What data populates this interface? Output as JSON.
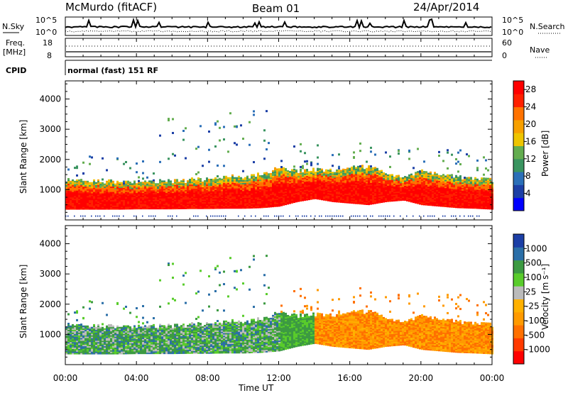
{
  "header": {
    "station": "McMurdo (fitACF)",
    "beam": "Beam 01",
    "date": "24/Apr/2014"
  },
  "noise_panel": {
    "left_label": "N.Sky",
    "right_label": "N.Search",
    "left_ticks": [
      "10^5",
      "10^0"
    ],
    "right_ticks": [
      "10^5",
      "10^0"
    ]
  },
  "freq_panel": {
    "left_label_1": "Freq.",
    "left_label_2": "[MHz]",
    "right_label": "Nave",
    "left_ticks": [
      "18",
      "8"
    ],
    "right_ticks": [
      "60",
      "0"
    ]
  },
  "cpid": {
    "label": "CPID",
    "mode": "normal (fast) 151 RF"
  },
  "colors": {
    "power_scale": [
      "#0000ff",
      "#1c3fa6",
      "#2b6fb8",
      "#3a9460",
      "#63ad4f",
      "#eec500",
      "#f7a000",
      "#ff7200",
      "#ff2000",
      "#ff0000"
    ],
    "velocity_scale": [
      "#ff0000",
      "#ff3a00",
      "#ff7000",
      "#ff9a00",
      "#ffb100",
      "#bbbbbb",
      "#59cc2b",
      "#3c9a42",
      "#2b6fa8",
      "#1c3fa6"
    ]
  },
  "chart_data": [
    {
      "type": "heatmap",
      "name": "power",
      "x_axis": {
        "ticks": [
          "00:00",
          "04:00",
          "08:00",
          "12:00",
          "16:00",
          "20:00",
          "00:00"
        ],
        "range_hours": [
          0,
          24
        ]
      },
      "ylabel": "Slant Range [km]",
      "y_ticks": [
        1000,
        2000,
        3000,
        4000
      ],
      "ylim": [
        0,
        4600
      ],
      "colorbar": {
        "label": "Power [dB]",
        "ticks": [
          4,
          8,
          12,
          16,
          20,
          24,
          28
        ],
        "range": [
          0,
          30
        ]
      },
      "dense_band": {
        "hours": [
          0,
          1,
          2,
          3,
          4,
          5,
          6,
          7,
          8,
          9,
          10,
          11,
          12,
          13,
          14,
          15,
          16,
          17,
          18,
          19,
          20,
          21,
          22,
          23,
          24
        ],
        "bottom_km": [
          350,
          350,
          350,
          350,
          360,
          360,
          360,
          370,
          370,
          380,
          380,
          400,
          450,
          600,
          700,
          600,
          550,
          500,
          600,
          650,
          500,
          450,
          400,
          380,
          350
        ],
        "top_km": [
          1300,
          1300,
          1250,
          1250,
          1250,
          1250,
          1250,
          1300,
          1350,
          1400,
          1400,
          1500,
          1700,
          1600,
          1650,
          1600,
          1700,
          1750,
          1500,
          1400,
          1600,
          1500,
          1400,
          1350,
          1300
        ]
      }
    },
    {
      "type": "heatmap",
      "name": "velocity",
      "x_axis": {
        "ticks": [
          "00:00",
          "04:00",
          "08:00",
          "12:00",
          "16:00",
          "20:00",
          "00:00"
        ],
        "range_hours": [
          0,
          24
        ]
      },
      "xlabel": "Time UT",
      "ylabel": "Slant Range [km]",
      "y_ticks": [
        1000,
        2000,
        3000,
        4000
      ],
      "ylim": [
        0,
        4600
      ],
      "colorbar": {
        "label": "Velocity [m s⁻¹]",
        "ticks": [
          "1000",
          "500",
          "100",
          "25",
          "-25",
          "-100",
          "-500",
          "-1000"
        ]
      }
    }
  ]
}
